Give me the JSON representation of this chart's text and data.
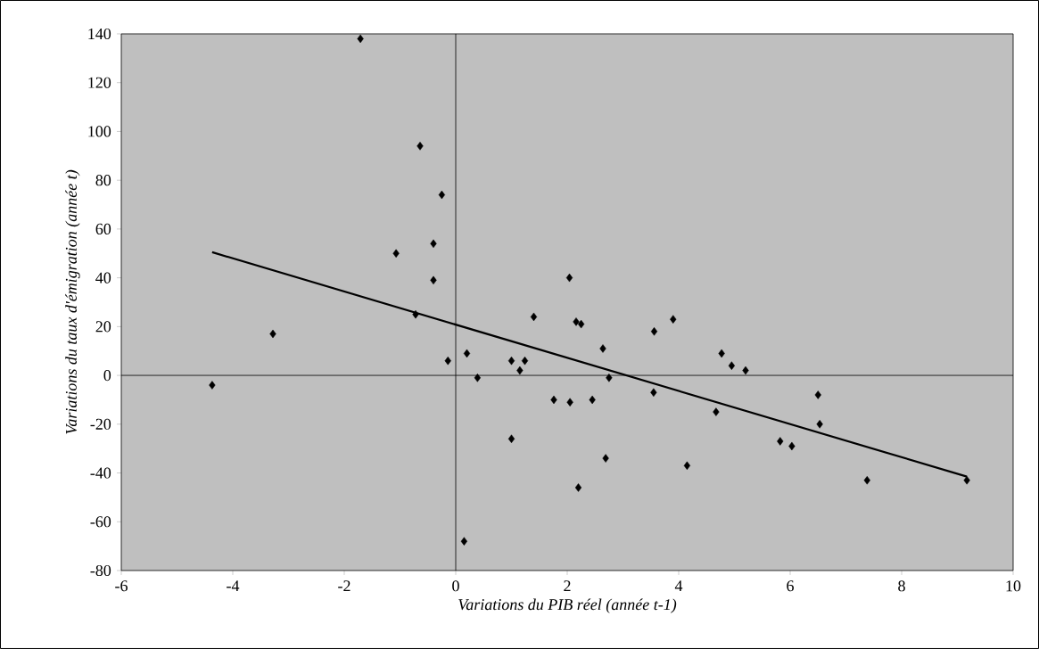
{
  "chart_data": {
    "type": "scatter",
    "xlabel": "Variations du PIB réel (année t-1)",
    "ylabel": "Variations du taux d'émigration (année t)",
    "xlim": [
      -6,
      10
    ],
    "ylim": [
      -80,
      140
    ],
    "xticks": [
      -6,
      -4,
      -2,
      0,
      2,
      4,
      6,
      8,
      10
    ],
    "yticks": [
      -80,
      -60,
      -40,
      -20,
      0,
      20,
      40,
      60,
      80,
      100,
      120,
      140
    ],
    "series": [
      {
        "color": "#000000",
        "marker": "diamond",
        "x": [
          -4.37,
          -3.28,
          -1.71,
          -0.64,
          -0.25,
          -0.4,
          -1.07,
          -0.4,
          -0.72,
          -0.14,
          0.2,
          0.39,
          1.0,
          1.15,
          1.24,
          0.15,
          1.0,
          1.76,
          2.05,
          2.45,
          1.4,
          2.04,
          2.16,
          2.25,
          2.64,
          2.75,
          2.69,
          2.2,
          3.56,
          3.55,
          3.9,
          4.15,
          4.77,
          4.95,
          5.2,
          4.67,
          5.82,
          6.03,
          6.5,
          6.53,
          7.38,
          9.17
        ],
        "values": [
          -4,
          17,
          138,
          94,
          74,
          54,
          50,
          39,
          25,
          6,
          9,
          -1,
          6,
          2,
          6,
          -68,
          -26,
          -10,
          -11,
          -10,
          24,
          40,
          22,
          21,
          11,
          -1,
          -34,
          -46,
          18,
          -7,
          23,
          -37,
          9,
          4,
          2,
          -15,
          -27,
          -29,
          -8,
          -20,
          -43,
          -43
        ]
      },
      {
        "type": "line",
        "color": "#000000",
        "marker": "none",
        "line_style": "solid",
        "x": [
          -4.37,
          9.17
        ],
        "values": [
          50.5,
          -41.5
        ]
      }
    ]
  }
}
